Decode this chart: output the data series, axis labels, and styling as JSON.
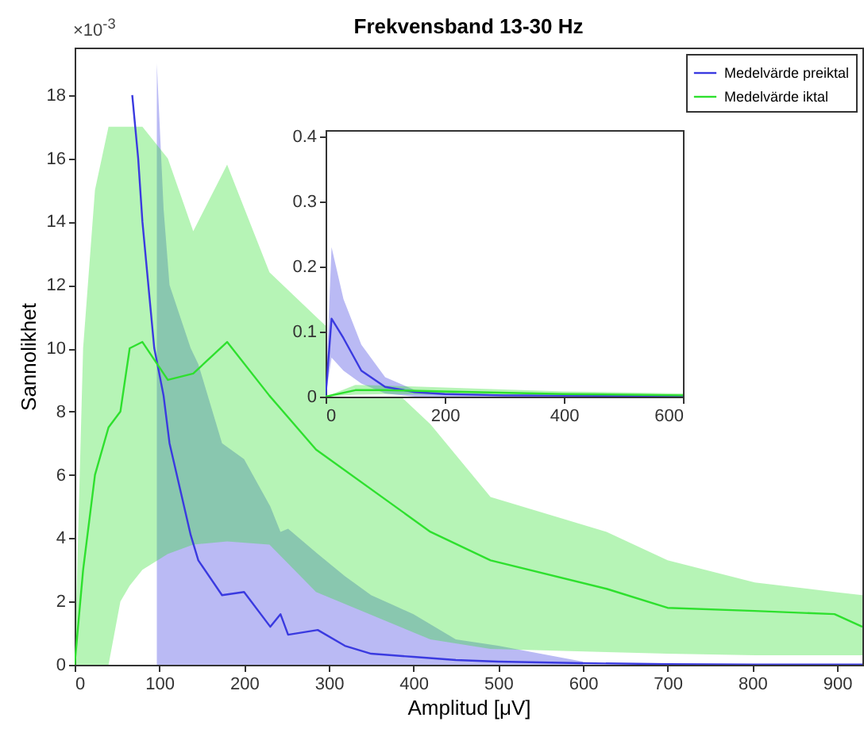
{
  "chart_data": [
    {
      "type": "line",
      "title": "Frekvensband 13-30 Hz",
      "xlabel": "Amplitud [μV]",
      "ylabel": "Sannolikhet",
      "annotations": [
        "×10$^{-3}$"
      ],
      "xlim": [
        0,
        930
      ],
      "ylim": [
        0,
        19.5
      ],
      "xticks": [
        0,
        100,
        200,
        300,
        400,
        500,
        600,
        700,
        800,
        900
      ],
      "yticks": [
        0,
        2,
        4,
        6,
        8,
        10,
        12,
        14,
        16,
        18
      ],
      "grid": false,
      "legend": "top right",
      "series": [
        {
          "name": "Medelvärde preiktal",
          "color": "#3a3ae0",
          "x": [
            68,
            75,
            80,
            94,
            97,
            105,
            112,
            137,
            146,
            174,
            200,
            231,
            243,
            252,
            287,
            319,
            350,
            400,
            450,
            500,
            600,
            700,
            800,
            930
          ],
          "values": [
            18,
            16,
            14,
            10,
            9.6,
            8.5,
            7,
            4.1,
            3.3,
            2.2,
            2.3,
            1.2,
            1.6,
            0.95,
            1.1,
            0.6,
            0.35,
            0.25,
            0.15,
            0.1,
            0.05,
            0.02,
            0.01,
            0.01
          ],
          "lower": [
            null,
            null,
            null,
            null,
            0,
            0,
            0,
            0,
            0,
            0,
            0,
            0,
            0,
            0,
            0,
            0,
            0,
            0,
            0,
            0,
            0,
            null,
            null,
            null
          ],
          "upper": [
            null,
            null,
            null,
            null,
            19,
            14.4,
            12,
            10,
            9.5,
            7,
            6.5,
            5,
            4.2,
            4.3,
            3.5,
            2.8,
            2.2,
            1.6,
            0.8,
            0.6,
            0.1,
            null,
            null,
            null
          ]
        },
        {
          "name": "Medelvärde iktal",
          "color": "#2ee02e",
          "x": [
            0,
            10,
            24,
            40,
            54,
            65,
            80,
            110,
            140,
            180,
            230,
            285,
            420,
            491,
            628,
            700,
            803,
            897,
            930
          ],
          "values": [
            0,
            3,
            6,
            7.5,
            8,
            10,
            10.2,
            9,
            9.2,
            10.2,
            8.5,
            6.8,
            4.2,
            3.3,
            2.4,
            1.8,
            1.7,
            1.6,
            1.2
          ],
          "lower": [
            0,
            0,
            0,
            0,
            2,
            2.5,
            3,
            3.5,
            3.8,
            3.9,
            3.8,
            2.3,
            0.8,
            0.5,
            0.4,
            0.35,
            0.3,
            0.3,
            0.3
          ],
          "upper": [
            0,
            10,
            15,
            17,
            17,
            17,
            17,
            16,
            13.7,
            15.8,
            12.4,
            11,
            7.6,
            5.3,
            4.2,
            3.3,
            2.6,
            2.3,
            2.2
          ]
        }
      ]
    },
    {
      "type": "line",
      "xlim": [
        0,
        600
      ],
      "ylim": [
        0,
        0.41
      ],
      "xticks": [
        0,
        200,
        400,
        600
      ],
      "yticks": [
        0,
        0.1,
        0.2,
        0.3,
        0.4
      ],
      "grid": false,
      "series": [
        {
          "color": "#3a3ae0",
          "x": [
            0,
            10,
            30,
            60,
            100,
            150,
            200,
            300,
            600
          ],
          "values": [
            0,
            0.12,
            0.09,
            0.04,
            0.015,
            0.007,
            0.004,
            0.002,
            0.001
          ],
          "lower": [
            0,
            0.06,
            0.04,
            0.02,
            0.005,
            0,
            0,
            0,
            0
          ],
          "upper": [
            0,
            0.23,
            0.15,
            0.08,
            0.03,
            0.01,
            0.006,
            0.003,
            0.002
          ]
        },
        {
          "color": "#2ee02e",
          "x": [
            0,
            50,
            100,
            200,
            400,
            600
          ],
          "values": [
            0,
            0.01,
            0.01,
            0.008,
            0.004,
            0.002
          ],
          "lower": [
            0,
            0.003,
            0.004,
            0.003,
            0.001,
            0
          ],
          "upper": [
            0,
            0.018,
            0.017,
            0.014,
            0.008,
            0.005
          ]
        }
      ]
    }
  ]
}
